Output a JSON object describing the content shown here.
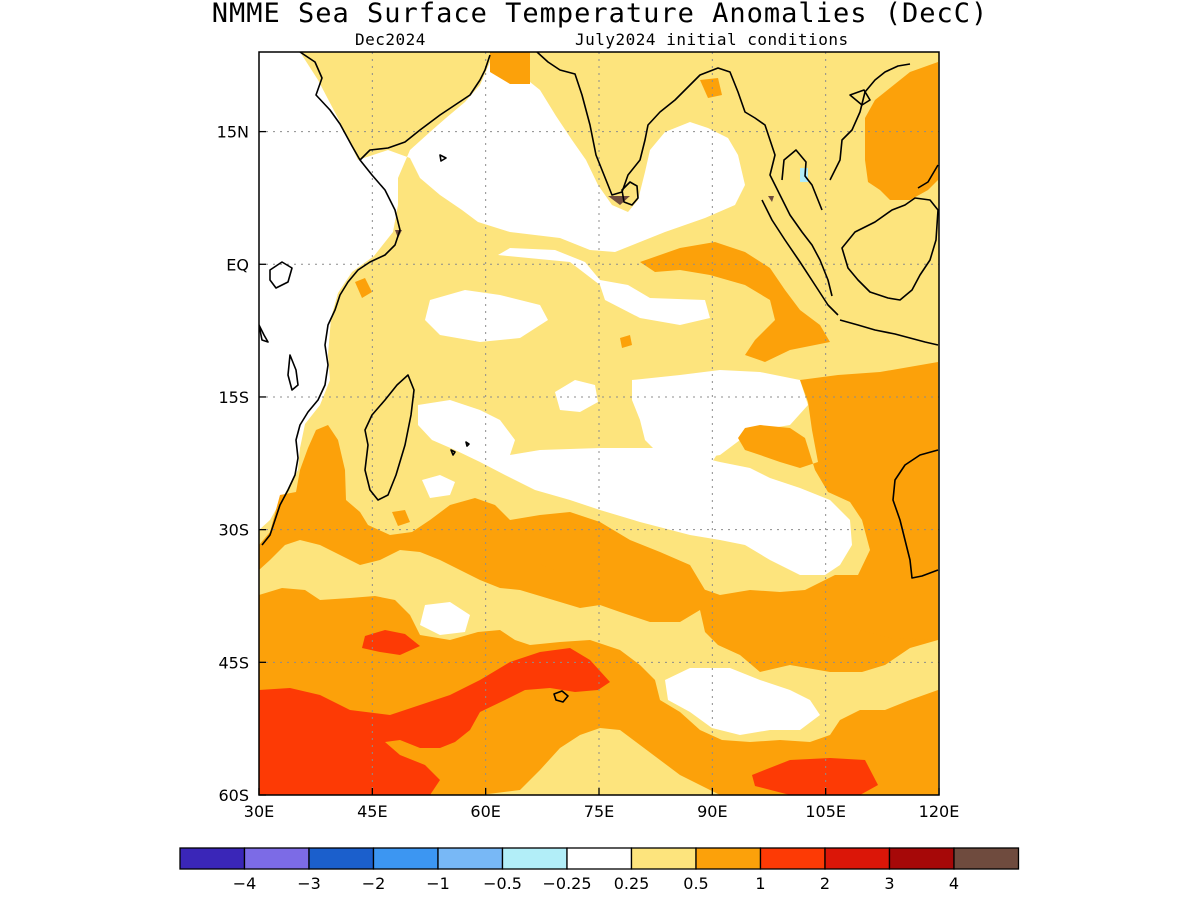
{
  "title": "NMME Sea Surface Temperature Anomalies (DecC)",
  "subtitle_left": "Dec2024",
  "subtitle_right": "July2024 initial conditions",
  "map": {
    "lon_range": [
      30,
      120
    ],
    "lat_range": [
      -60,
      24
    ],
    "lon_ticks": [
      {
        "value": 30,
        "label": "30E"
      },
      {
        "value": 45,
        "label": "45E"
      },
      {
        "value": 60,
        "label": "60E"
      },
      {
        "value": 75,
        "label": "75E"
      },
      {
        "value": 90,
        "label": "90E"
      },
      {
        "value": 105,
        "label": "105E"
      },
      {
        "value": 120,
        "label": "120E"
      }
    ],
    "lat_ticks": [
      {
        "value": 15,
        "label": "15N"
      },
      {
        "value": 0,
        "label": "EQ"
      },
      {
        "value": -15,
        "label": "15S"
      },
      {
        "value": -30,
        "label": "30S"
      },
      {
        "value": -45,
        "label": "45S"
      },
      {
        "value": -60,
        "label": "60S"
      }
    ],
    "grid": true
  },
  "colorbar": {
    "colors": [
      "#3a26b8",
      "#7c6be6",
      "#1b5fcc",
      "#3c96f2",
      "#78b8f6",
      "#b2eef8",
      "#ffffff",
      "#fde47d",
      "#fca10a",
      "#fd3a05",
      "#db1608",
      "#a60808",
      "#6f4b3e"
    ],
    "labels": [
      "−4",
      "−3",
      "−2",
      "−1",
      "−0.5",
      "−0.25",
      "0.25",
      "0.5",
      "1",
      "2",
      "3",
      "4"
    ]
  },
  "palette": {
    "w": "#ffffff",
    "y": "#fde47d",
    "o": "#fca10a",
    "r": "#fd3a05",
    "b": "#b2eef8",
    "m": "#6f4b3e"
  }
}
